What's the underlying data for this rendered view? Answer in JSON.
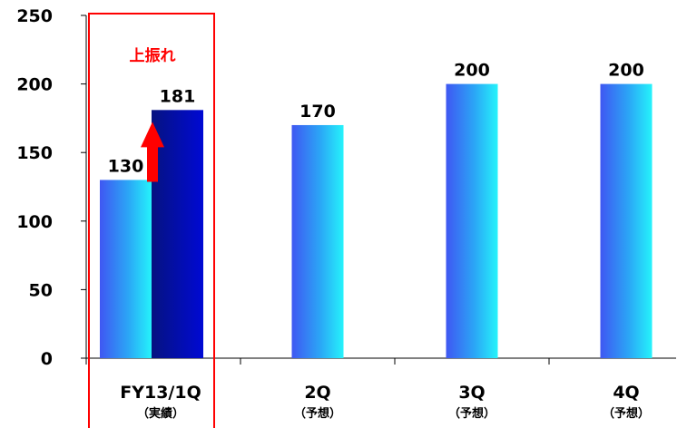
{
  "chart_data": {
    "type": "bar",
    "categories": [
      "FY13/1Q",
      "2Q",
      "3Q",
      "4Q"
    ],
    "category_sublabels": [
      "（実績）",
      "（予想）",
      "（予想）",
      "（予想）"
    ],
    "series": [
      {
        "values": [
          130,
          170,
          200,
          200
        ],
        "color": "#2a6cf0"
      },
      {
        "values": [
          181,
          null,
          null,
          null
        ],
        "color": "#0008c8"
      }
    ],
    "data_labels": [
      [
        "130",
        "170",
        "200",
        "200"
      ],
      [
        "181",
        "",
        "",
        ""
      ]
    ],
    "ylim": [
      0,
      250
    ],
    "yticks": [
      0,
      50,
      100,
      150,
      200,
      250
    ],
    "grid": false,
    "legend": "none",
    "annotation": {
      "text": "上振れ",
      "color": "#ff0000",
      "arrow": "up",
      "from": 130,
      "to": 181
    },
    "highlight_box": {
      "category": "FY13/1Q",
      "color": "#ff0000"
    },
    "title": "",
    "xlabel": "",
    "ylabel": ""
  }
}
